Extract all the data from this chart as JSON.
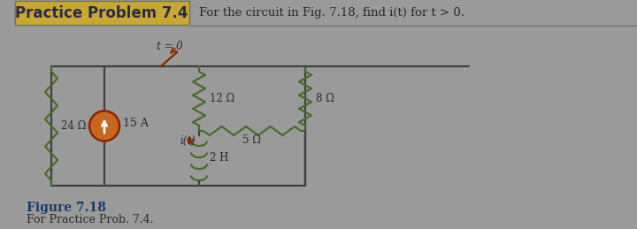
{
  "title": "Practice Problem 7.4",
  "problem_text": "For the circuit in Fig. 7.18, find i(t) for t > 0.",
  "figure_label": "Figure 7.18",
  "figure_caption": "For Practice Prob. 7.4.",
  "bg_color": "#9a9a9a",
  "header_bg": "#9a9a9a",
  "title_bg": "#c8a832",
  "title_color": "#2a2a4a",
  "problem_color": "#2a2a2a",
  "wire_color": "#404040",
  "resistor_color": "#4a6a2a",
  "cs_color": "#8B2500",
  "cs_fill": "#c86820",
  "label_color": "#2a2a2a",
  "fig_label_color": "#1a3a6a",
  "resistor_12": "12 Ω",
  "resistor_8": "8 Ω",
  "resistor_24": "24 Ω",
  "resistor_5": "5 Ω",
  "inductor": "2 H",
  "current_source": "15 A",
  "switch_label": "t = 0",
  "current_label": "i(t)"
}
